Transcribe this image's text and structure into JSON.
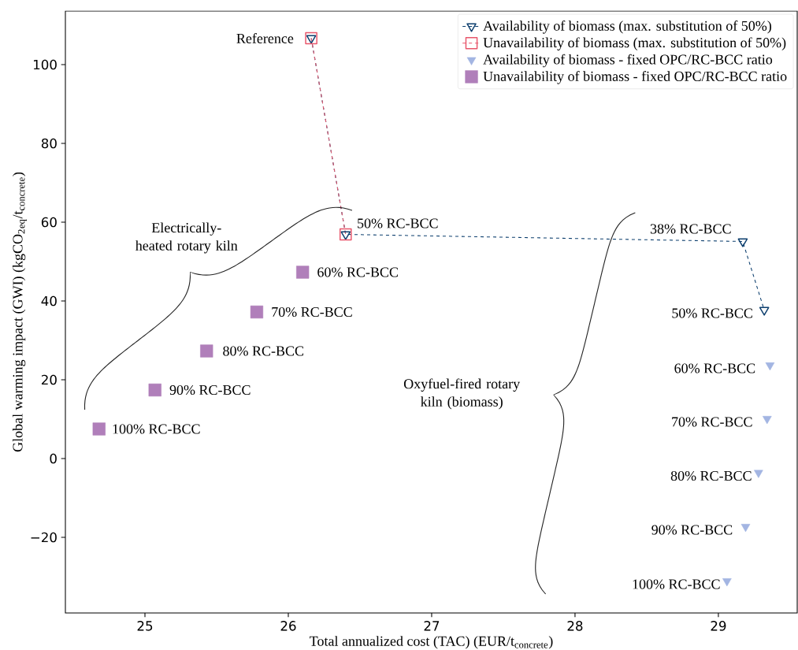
{
  "chart_data": {
    "type": "scatter",
    "xlabel": "Total annualized cost (TAC) (EUR/t$_{concrete}$)",
    "ylabel": "Global warming impact (GWI) (kgCO$_{2}$$_{eq}$/t$_{concrete}$)",
    "xlim": [
      24.445,
      29.55
    ],
    "ylim": [
      -39.2,
      113.6
    ],
    "xticks": [
      25,
      26,
      27,
      28,
      29
    ],
    "yticks": [
      {
        "value": -20,
        "label": "−20"
      },
      0,
      20,
      40,
      60,
      80,
      100
    ],
    "legend": "top right",
    "grid": false,
    "series": [
      {
        "name": "Availability of biomass (max. substitution of 50%)",
        "type": "line",
        "color": "#0d3f6e",
        "marker": "triangle",
        "line_style": "dashed",
        "x": [
          26.16,
          26.4,
          29.17,
          29.32
        ],
        "values": [
          106.7,
          56.9,
          55.1,
          37.7
        ]
      },
      {
        "name": "Unavailability of biomass (max. substitution of 50%)",
        "type": "line",
        "color": "#e8566b",
        "marker": "square",
        "line_style": "dashed",
        "x": [
          26.16,
          26.4
        ],
        "values": [
          106.7,
          56.9
        ]
      },
      {
        "name": "Availability of biomass - fixed OPC/RC-BCC ratio",
        "type": "scatter",
        "color": "#a3b5e2",
        "marker": "triangle",
        "x": [
          29.36,
          29.34,
          29.28,
          29.19,
          29.06
        ],
        "values": [
          23.7,
          10.1,
          -3.6,
          -17.3,
          -31.1
        ]
      },
      {
        "name": "Unavailability of biomass - fixed OPC/RC-BCC ratio",
        "type": "scatter",
        "color": "#b07fba",
        "marker": "square",
        "x": [
          26.1,
          25.78,
          25.43,
          25.07,
          24.68
        ],
        "values": [
          47.3,
          37.2,
          27.3,
          17.4,
          7.5
        ]
      }
    ],
    "annotations": [
      {
        "text": "Reference",
        "x": 26.16,
        "y": 106.7
      },
      {
        "text": "50% RC-BCC",
        "x": 26.4,
        "y": 56.9
      },
      {
        "text": "38% RC-BCC",
        "x": 29.17,
        "y": 55.1
      },
      {
        "text": "50% RC-BCC",
        "x": 29.32,
        "y": 37.7
      },
      {
        "text": "60% RC-BCC",
        "x": 29.36,
        "y": 23.7
      },
      {
        "text": "70% RC-BCC",
        "x": 29.34,
        "y": 10.1
      },
      {
        "text": "80% RC-BCC",
        "x": 29.28,
        "y": -3.6
      },
      {
        "text": "90% RC-BCC",
        "x": 29.19,
        "y": -17.3
      },
      {
        "text": "100% RC-BCC",
        "x": 29.06,
        "y": -31.1
      },
      {
        "text": "60% RC-BCC",
        "x": 26.1,
        "y": 47.3
      },
      {
        "text": "70% RC-BCC",
        "x": 25.78,
        "y": 37.2
      },
      {
        "text": "80% RC-BCC",
        "x": 25.43,
        "y": 27.3
      },
      {
        "text": "90% RC-BCC",
        "x": 25.07,
        "y": 17.4
      },
      {
        "text": "100% RC-BCC",
        "x": 24.68,
        "y": 7.5
      },
      "Electrically-heated rotary kiln",
      "Oxyfuel-fired rotary kiln (biomass)"
    ]
  }
}
